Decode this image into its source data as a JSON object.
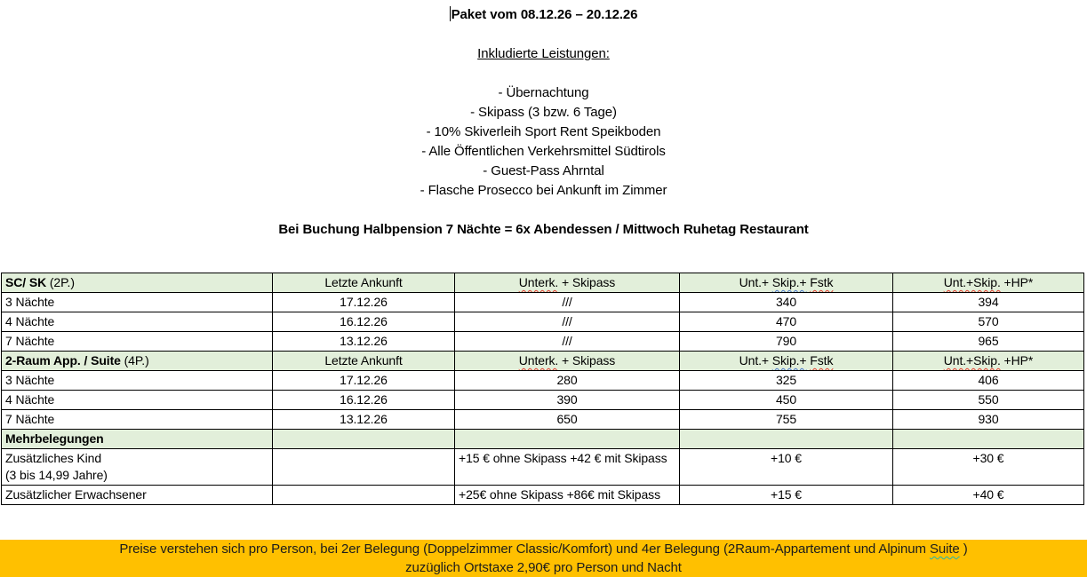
{
  "title": "Paket vom 08.12.26 – 20.12.26",
  "included_heading": "Inkludierte Leistungen:",
  "included_items": [
    "- Übernachtung",
    "- Skipass (3 bzw. 6 Tage)",
    "- 10% Skiverleih Sport Rent Speikboden",
    "- Alle Öffentlichen Verkehrsmittel Südtirols",
    "- Guest-Pass Ahrntal",
    "- Flasche Prosecco bei Ankunft im Zimmer"
  ],
  "note": "Bei Buchung Halbpension 7 Nächte = 6x Abendessen / Mittwoch Ruhetag Restaurant",
  "colors": {
    "section_header_green": "#e2efda",
    "banner_orange": "#ffc000",
    "squiggle_red": "#dd3a2a",
    "squiggle_blue": "#4472c4",
    "squiggle_teal": "#1fb5ad",
    "table_border": "#000000"
  },
  "table": {
    "rows": [
      {
        "green": true,
        "cells": [
          {
            "segments": [
              {
                "text": "SC/ SK",
                "bold": true
              },
              {
                "text": " (2P.)"
              }
            ],
            "align": "left"
          },
          {
            "text": "Letzte Ankunft"
          },
          {
            "segments": [
              {
                "text": "Unterk.",
                "squiggle": "red"
              },
              {
                "text": " + Skipass"
              }
            ]
          },
          {
            "segments": [
              {
                "text": "Unt.+ "
              },
              {
                "text": "Skip.+",
                "squiggle": "blue"
              },
              {
                "text": " "
              },
              {
                "text": "Fstk",
                "squiggle": "red"
              }
            ]
          },
          {
            "segments": [
              {
                "text": "Unt.+Skip.",
                "squiggle": "red"
              },
              {
                "text": " +HP*"
              }
            ]
          }
        ]
      },
      {
        "cells": [
          {
            "text": "3 Nächte",
            "align": "left"
          },
          {
            "text": "17.12.26"
          },
          {
            "text": "///"
          },
          {
            "text": "340"
          },
          {
            "text": "394"
          }
        ]
      },
      {
        "cells": [
          {
            "text": "4 Nächte",
            "align": "left"
          },
          {
            "text": "16.12.26"
          },
          {
            "text": "///"
          },
          {
            "text": "470"
          },
          {
            "text": "570"
          }
        ]
      },
      {
        "cells": [
          {
            "text": "7 Nächte",
            "align": "left"
          },
          {
            "text": "13.12.26"
          },
          {
            "text": "///"
          },
          {
            "text": "790"
          },
          {
            "text": "965"
          }
        ]
      },
      {
        "green": true,
        "cells": [
          {
            "segments": [
              {
                "text": "2-Raum App. / Suite",
                "bold": true
              },
              {
                "text": " (4P.)"
              }
            ],
            "align": "left"
          },
          {
            "text": "Letzte Ankunft"
          },
          {
            "segments": [
              {
                "text": "Unterk.",
                "squiggle": "red"
              },
              {
                "text": " + Skipass"
              }
            ]
          },
          {
            "segments": [
              {
                "text": "Unt.+ "
              },
              {
                "text": "Skip.+",
                "squiggle": "blue"
              },
              {
                "text": " "
              },
              {
                "text": "Fstk",
                "squiggle": "red"
              }
            ]
          },
          {
            "segments": [
              {
                "text": "Unt.+Skip.",
                "squiggle": "red"
              },
              {
                "text": " +HP*"
              }
            ]
          }
        ]
      },
      {
        "cells": [
          {
            "text": "3 Nächte",
            "align": "left"
          },
          {
            "text": "17.12.26"
          },
          {
            "text": "280"
          },
          {
            "text": "325"
          },
          {
            "text": "406"
          }
        ]
      },
      {
        "cells": [
          {
            "text": "4 Nächte",
            "align": "left"
          },
          {
            "text": "16.12.26"
          },
          {
            "text": "390"
          },
          {
            "text": "450"
          },
          {
            "text": "550"
          }
        ]
      },
      {
        "cells": [
          {
            "text": "7 Nächte",
            "align": "left"
          },
          {
            "text": "13.12.26"
          },
          {
            "text": "650"
          },
          {
            "text": "755"
          },
          {
            "text": "930"
          }
        ]
      },
      {
        "green": true,
        "cells": [
          {
            "segments": [
              {
                "text": "Mehrbelegungen",
                "bold": true
              }
            ],
            "align": "left"
          },
          {
            "text": ""
          },
          {
            "text": ""
          },
          {
            "text": ""
          },
          {
            "text": ""
          }
        ]
      },
      {
        "top": true,
        "cells": [
          {
            "lines": [
              "Zusätzliches Kind",
              "(3 bis 14,99 Jahre)"
            ],
            "align": "left"
          },
          {
            "text": ""
          },
          {
            "text": "+15 € ohne Skipass +42 € mit Skipass",
            "align": "left"
          },
          {
            "text": "+10 €"
          },
          {
            "text": "+30 €"
          }
        ]
      },
      {
        "top": true,
        "cells": [
          {
            "text": "Zusätzlicher Erwachsener",
            "align": "left"
          },
          {
            "text": ""
          },
          {
            "text": "+25€ ohne Skipass +86€ mit Skipass",
            "align": "left"
          },
          {
            "text": "+15 €"
          },
          {
            "text": "+40 €"
          }
        ]
      }
    ]
  },
  "banner": {
    "line1_segments": [
      {
        "text": "Preise verstehen sich pro Person, bei 2er Belegung (Doppelzimmer Classic/Komfort) und 4er Belegung (2Raum-Appartement und Alpinum "
      },
      {
        "text": "Suite",
        "squiggle": "teal"
      },
      {
        "text": " )"
      }
    ],
    "line2": "zuzüglich Ortstaxe 2,90€ pro Person und Nacht"
  }
}
